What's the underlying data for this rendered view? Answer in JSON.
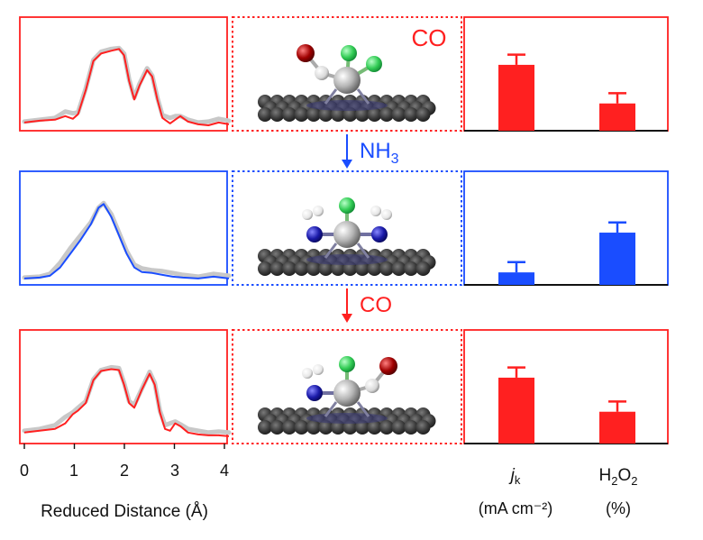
{
  "colors": {
    "red": "#ff2020",
    "blue": "#1a4dff",
    "gray": "#c8c8c8",
    "black": "#111111"
  },
  "rows": [
    {
      "id": "co",
      "color": "red",
      "ligand_label": "CO",
      "ligand_color": "red",
      "ligands": [
        "oh-left",
        "cl",
        "cl"
      ],
      "bars": [
        0.58,
        0.24
      ]
    },
    {
      "id": "nh3",
      "color": "blue",
      "ligand_label": "",
      "ligands": [
        "nh-left",
        "cl",
        "nh-right"
      ],
      "bars": [
        0.11,
        0.46
      ]
    },
    {
      "id": "co-final",
      "color": "red",
      "ligand_label": "",
      "ligands": [
        "nh-left",
        "cl",
        "oh-right"
      ],
      "bars": [
        0.58,
        0.28
      ]
    }
  ],
  "arrows": [
    {
      "label": "NH",
      "sub": "3",
      "color": "blue"
    },
    {
      "label": "CO",
      "sub": "",
      "color": "red"
    }
  ],
  "x_axis": {
    "ticks": [
      "0",
      "1",
      "2",
      "3",
      "4"
    ],
    "label": "Reduced Distance (Å)"
  },
  "bar_labels": {
    "jk_main": "j",
    "jk_sub": "k",
    "jk_unit": "(mA cm⁻²)",
    "h2o2_main": "H",
    "h2o2_sub1": "2",
    "h2o2_mid": "O",
    "h2o2_sub2": "2",
    "h2o2_unit": "(%)"
  },
  "spectra": {
    "co_fit": [
      [
        0,
        0.05
      ],
      [
        0.3,
        0.07
      ],
      [
        0.6,
        0.08
      ],
      [
        0.8,
        0.12
      ],
      [
        0.95,
        0.09
      ],
      [
        1.05,
        0.14
      ],
      [
        1.2,
        0.4
      ],
      [
        1.35,
        0.72
      ],
      [
        1.5,
        0.8
      ],
      [
        1.7,
        0.83
      ],
      [
        1.85,
        0.85
      ],
      [
        1.95,
        0.78
      ],
      [
        2.05,
        0.5
      ],
      [
        2.15,
        0.3
      ],
      [
        2.25,
        0.45
      ],
      [
        2.4,
        0.62
      ],
      [
        2.5,
        0.55
      ],
      [
        2.6,
        0.3
      ],
      [
        2.7,
        0.1
      ],
      [
        2.85,
        0.04
      ],
      [
        2.95,
        0.08
      ],
      [
        3.05,
        0.12
      ],
      [
        3.2,
        0.06
      ],
      [
        3.4,
        0.03
      ],
      [
        3.6,
        0.02
      ],
      [
        3.8,
        0.05
      ],
      [
        4,
        0.03
      ]
    ],
    "co_exp": [
      [
        0,
        0.06
      ],
      [
        0.3,
        0.08
      ],
      [
        0.6,
        0.1
      ],
      [
        0.8,
        0.17
      ],
      [
        0.95,
        0.15
      ],
      [
        1.05,
        0.16
      ],
      [
        1.2,
        0.42
      ],
      [
        1.35,
        0.73
      ],
      [
        1.5,
        0.82
      ],
      [
        1.7,
        0.85
      ],
      [
        1.85,
        0.86
      ],
      [
        1.95,
        0.8
      ],
      [
        2.05,
        0.52
      ],
      [
        2.15,
        0.32
      ],
      [
        2.25,
        0.47
      ],
      [
        2.4,
        0.64
      ],
      [
        2.5,
        0.56
      ],
      [
        2.6,
        0.32
      ],
      [
        2.7,
        0.13
      ],
      [
        2.85,
        0.1
      ],
      [
        2.95,
        0.12
      ],
      [
        3.05,
        0.12
      ],
      [
        3.2,
        0.08
      ],
      [
        3.4,
        0.05
      ],
      [
        3.6,
        0.06
      ],
      [
        3.8,
        0.09
      ],
      [
        4,
        0.07
      ]
    ],
    "nh3_fit": [
      [
        0,
        0.03
      ],
      [
        0.3,
        0.04
      ],
      [
        0.5,
        0.06
      ],
      [
        0.7,
        0.15
      ],
      [
        0.9,
        0.3
      ],
      [
        1.1,
        0.45
      ],
      [
        1.3,
        0.62
      ],
      [
        1.45,
        0.8
      ],
      [
        1.55,
        0.84
      ],
      [
        1.7,
        0.7
      ],
      [
        1.85,
        0.5
      ],
      [
        2.0,
        0.3
      ],
      [
        2.15,
        0.15
      ],
      [
        2.3,
        0.1
      ],
      [
        2.5,
        0.09
      ],
      [
        2.7,
        0.07
      ],
      [
        2.9,
        0.05
      ],
      [
        3.1,
        0.04
      ],
      [
        3.4,
        0.03
      ],
      [
        3.7,
        0.05
      ],
      [
        4,
        0.03
      ]
    ],
    "nh3_exp": [
      [
        0,
        0.04
      ],
      [
        0.3,
        0.05
      ],
      [
        0.5,
        0.08
      ],
      [
        0.7,
        0.2
      ],
      [
        0.9,
        0.36
      ],
      [
        1.1,
        0.5
      ],
      [
        1.3,
        0.64
      ],
      [
        1.45,
        0.8
      ],
      [
        1.55,
        0.85
      ],
      [
        1.7,
        0.73
      ],
      [
        1.85,
        0.53
      ],
      [
        2.0,
        0.33
      ],
      [
        2.15,
        0.18
      ],
      [
        2.3,
        0.14
      ],
      [
        2.5,
        0.12
      ],
      [
        2.7,
        0.11
      ],
      [
        2.9,
        0.09
      ],
      [
        3.1,
        0.07
      ],
      [
        3.4,
        0.05
      ],
      [
        3.7,
        0.08
      ],
      [
        4,
        0.06
      ]
    ],
    "cof_fit": [
      [
        0,
        0.08
      ],
      [
        0.3,
        0.1
      ],
      [
        0.6,
        0.12
      ],
      [
        0.8,
        0.18
      ],
      [
        0.95,
        0.28
      ],
      [
        1.05,
        0.32
      ],
      [
        1.2,
        0.4
      ],
      [
        1.35,
        0.65
      ],
      [
        1.5,
        0.75
      ],
      [
        1.7,
        0.77
      ],
      [
        1.85,
        0.76
      ],
      [
        1.95,
        0.6
      ],
      [
        2.05,
        0.4
      ],
      [
        2.15,
        0.35
      ],
      [
        2.3,
        0.55
      ],
      [
        2.45,
        0.72
      ],
      [
        2.55,
        0.6
      ],
      [
        2.65,
        0.3
      ],
      [
        2.75,
        0.12
      ],
      [
        2.85,
        0.1
      ],
      [
        2.95,
        0.18
      ],
      [
        3.05,
        0.15
      ],
      [
        3.2,
        0.08
      ],
      [
        3.4,
        0.06
      ],
      [
        3.6,
        0.05
      ],
      [
        3.8,
        0.05
      ],
      [
        4,
        0.04
      ]
    ],
    "cof_exp": [
      [
        0,
        0.1
      ],
      [
        0.3,
        0.12
      ],
      [
        0.6,
        0.16
      ],
      [
        0.8,
        0.25
      ],
      [
        0.95,
        0.3
      ],
      [
        1.05,
        0.35
      ],
      [
        1.2,
        0.42
      ],
      [
        1.35,
        0.66
      ],
      [
        1.5,
        0.76
      ],
      [
        1.7,
        0.79
      ],
      [
        1.85,
        0.78
      ],
      [
        1.95,
        0.62
      ],
      [
        2.05,
        0.42
      ],
      [
        2.15,
        0.38
      ],
      [
        2.3,
        0.56
      ],
      [
        2.45,
        0.74
      ],
      [
        2.55,
        0.62
      ],
      [
        2.65,
        0.32
      ],
      [
        2.75,
        0.16
      ],
      [
        2.85,
        0.18
      ],
      [
        2.95,
        0.2
      ],
      [
        3.05,
        0.17
      ],
      [
        3.2,
        0.12
      ],
      [
        3.4,
        0.1
      ],
      [
        3.6,
        0.08
      ],
      [
        3.8,
        0.09
      ],
      [
        4,
        0.08
      ]
    ]
  }
}
